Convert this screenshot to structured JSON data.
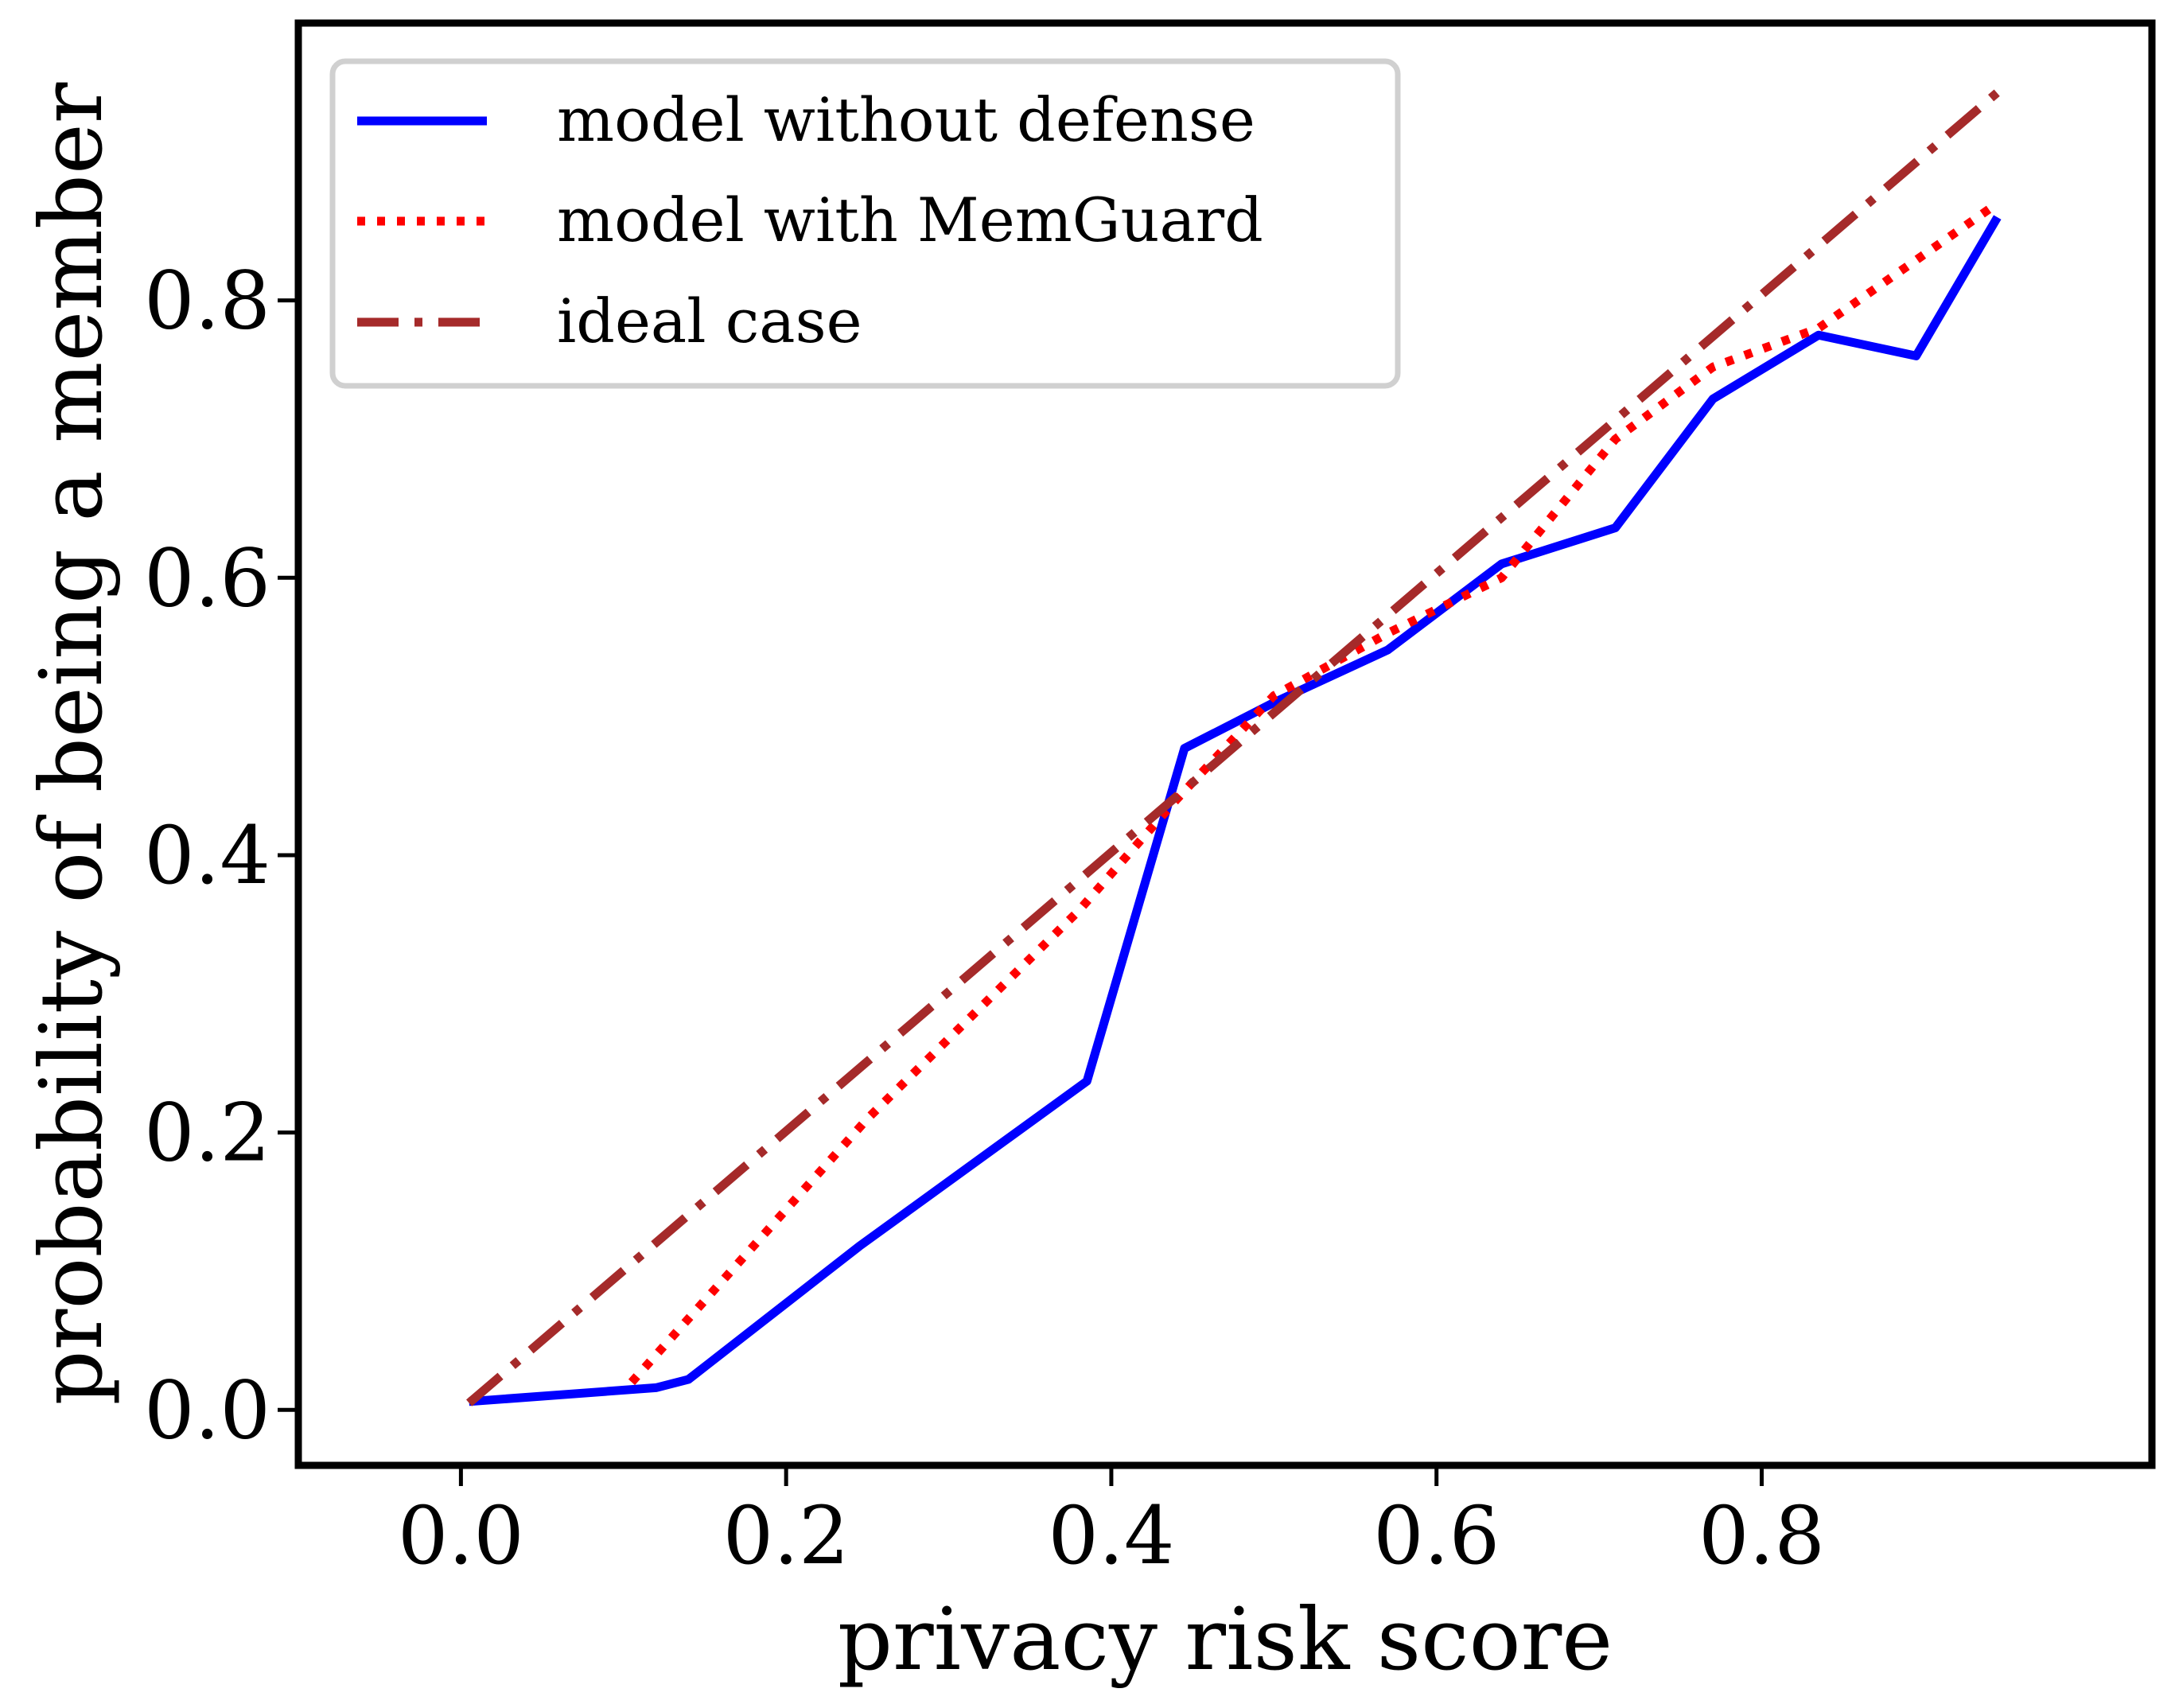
{
  "chart_data": {
    "type": "line",
    "title": "",
    "xlabel": "privacy risk score",
    "ylabel": "probability of being a member",
    "xlim": [
      -0.1,
      1.04
    ],
    "ylim": [
      -0.04,
      1.0
    ],
    "xticks": [
      0.0,
      0.2,
      0.4,
      0.6,
      0.8
    ],
    "xtick_labels": [
      "0.0",
      "0.2",
      "0.4",
      "0.6",
      "0.8"
    ],
    "yticks": [
      0.0,
      0.2,
      0.4,
      0.6,
      0.8
    ],
    "ytick_labels": [
      "0.0",
      "0.2",
      "0.4",
      "0.6",
      "0.8"
    ],
    "grid": false,
    "legend_position": "top-left",
    "series": [
      {
        "name": "model without defense",
        "color": "#0000ff",
        "style": "solid",
        "x": [
          0.005,
          0.12,
          0.14,
          0.245,
          0.385,
          0.445,
          0.5,
          0.57,
          0.64,
          0.71,
          0.77,
          0.835,
          0.895,
          0.945
        ],
        "y": [
          0.006,
          0.016,
          0.022,
          0.118,
          0.237,
          0.477,
          0.51,
          0.548,
          0.61,
          0.636,
          0.729,
          0.775,
          0.76,
          0.86
        ]
      },
      {
        "name": "model with MemGuard",
        "color": "#ff0000",
        "style": "dotted",
        "x": [
          0.105,
          0.25,
          0.38,
          0.44,
          0.5,
          0.57,
          0.64,
          0.71,
          0.77,
          0.835,
          0.945
        ],
        "y": [
          0.02,
          0.21,
          0.36,
          0.44,
          0.515,
          0.56,
          0.6,
          0.7,
          0.752,
          0.78,
          0.87
        ]
      },
      {
        "name": "ideal case",
        "color": "#a52a2a",
        "style": "dashdot",
        "x": [
          0.005,
          0.945
        ],
        "y": [
          0.005,
          0.95
        ]
      }
    ]
  }
}
